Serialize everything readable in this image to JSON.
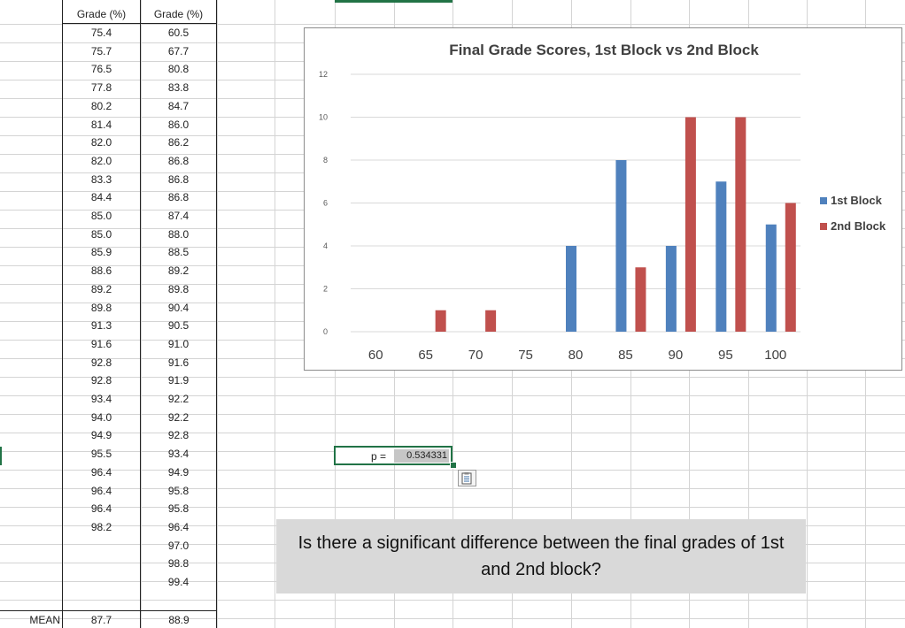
{
  "sheet": {
    "col_headers": [
      "Grade (%)",
      "Grade (%)"
    ],
    "block1_values": [
      "75.4",
      "75.7",
      "76.5",
      "77.8",
      "80.2",
      "81.4",
      "82.0",
      "82.0",
      "83.3",
      "84.4",
      "85.0",
      "85.0",
      "85.9",
      "88.6",
      "89.2",
      "89.8",
      "91.3",
      "91.6",
      "92.8",
      "92.8",
      "93.4",
      "94.0",
      "94.9",
      "95.5",
      "96.4",
      "96.4",
      "96.4",
      "98.2"
    ],
    "block2_values": [
      "60.5",
      "67.7",
      "80.8",
      "83.8",
      "84.7",
      "86.0",
      "86.2",
      "86.8",
      "86.8",
      "86.8",
      "87.4",
      "88.0",
      "88.5",
      "89.2",
      "89.8",
      "90.4",
      "90.5",
      "91.0",
      "91.6",
      "91.9",
      "92.2",
      "92.2",
      "92.8",
      "93.4",
      "94.9",
      "95.8",
      "95.8",
      "96.4",
      "97.0",
      "98.8",
      "99.4"
    ],
    "mean_label": "MEAN",
    "mean_block1": "87.7",
    "mean_block2": "88.9"
  },
  "pvalue": {
    "label": "p =",
    "value": "0.534331"
  },
  "question": "Is there a significant difference between the final grades of 1st and 2nd block?",
  "colors": {
    "block1": "#4f81bd",
    "block2": "#c0504d",
    "selection": "#217346"
  },
  "chart_data": {
    "type": "bar",
    "title": "Final Grade Scores, 1st Block vs 2nd Block",
    "categories": [
      "60",
      "65",
      "70",
      "75",
      "80",
      "85",
      "90",
      "95",
      "100"
    ],
    "series": [
      {
        "name": "1st Block",
        "values": [
          0,
          0,
          0,
          0,
          4,
          8,
          4,
          7,
          5
        ]
      },
      {
        "name": "2nd Block",
        "values": [
          0,
          1,
          1,
          0,
          0,
          3,
          10,
          10,
          6
        ]
      }
    ],
    "yticks": [
      "0",
      "2",
      "4",
      "6",
      "8",
      "10",
      "12"
    ],
    "ylim": [
      0,
      12
    ],
    "xlabel": "",
    "ylabel": "",
    "legend_position": "right",
    "grid": true
  }
}
